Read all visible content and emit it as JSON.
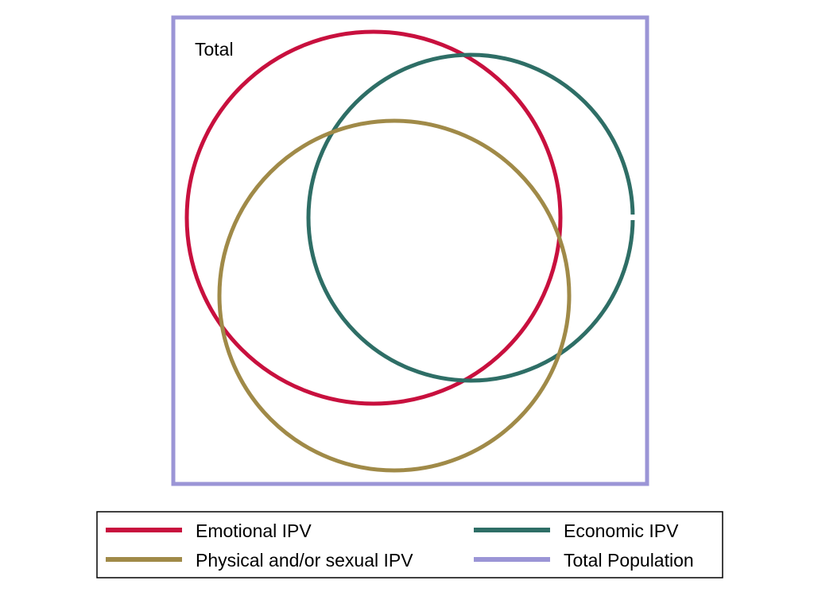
{
  "diagram": {
    "type": "venn",
    "panel_label": "Total",
    "sets": [
      {
        "key": "emotional",
        "color": "#c8103e"
      },
      {
        "key": "economic",
        "color": "#2e6e66"
      },
      {
        "key": "physical",
        "color": "#a08a48"
      }
    ],
    "frame": {
      "key": "total",
      "color": "#9b95d6"
    }
  },
  "legend": {
    "items": [
      {
        "label": "Emotional IPV",
        "color": "#c8103e"
      },
      {
        "label": "Economic IPV",
        "color": "#2e6e66"
      },
      {
        "label": "Physical and/or sexual IPV",
        "color": "#a08a48"
      },
      {
        "label": "Total Population",
        "color": "#9b95d6"
      }
    ]
  }
}
